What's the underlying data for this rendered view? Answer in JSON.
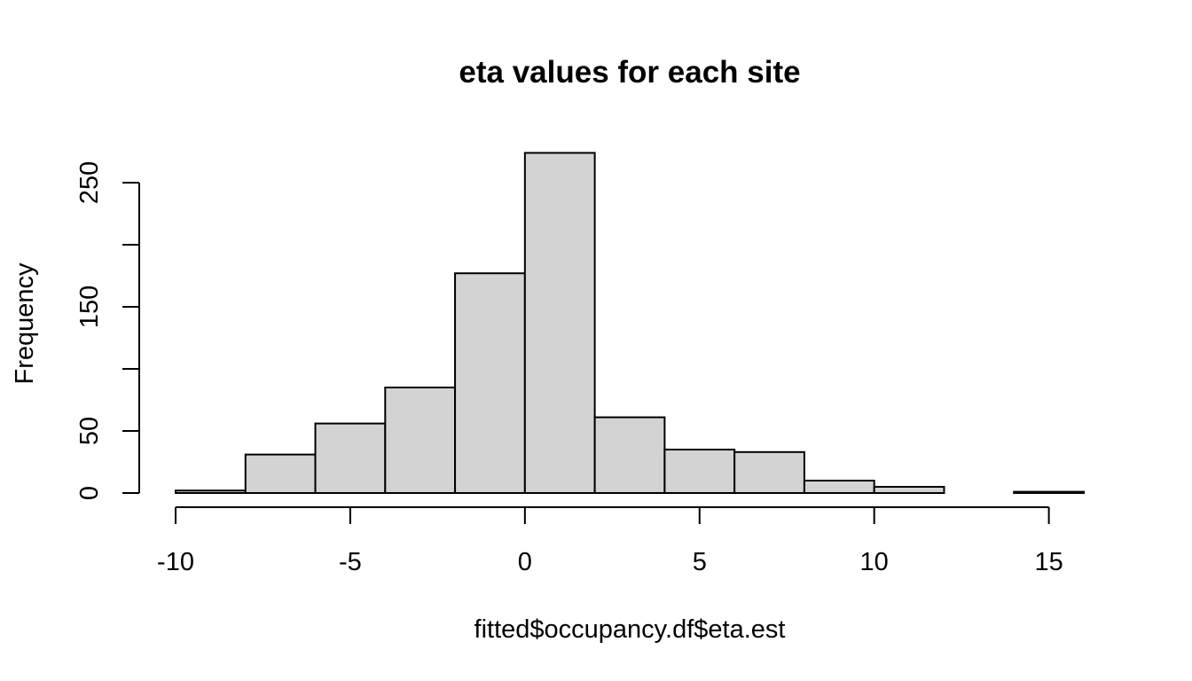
{
  "chart_data": {
    "type": "bar",
    "title": "eta values for each site",
    "xlabel": "fitted$occupancy.df$eta.est",
    "ylabel": "Frequency",
    "bins": [
      {
        "x0": -10,
        "x1": -8,
        "count": 2
      },
      {
        "x0": -8,
        "x1": -6,
        "count": 31
      },
      {
        "x0": -6,
        "x1": -4,
        "count": 56
      },
      {
        "x0": -4,
        "x1": -2,
        "count": 85
      },
      {
        "x0": -2,
        "x1": 0,
        "count": 177
      },
      {
        "x0": 0,
        "x1": 2,
        "count": 274
      },
      {
        "x0": 2,
        "x1": 4,
        "count": 61
      },
      {
        "x0": 4,
        "x1": 6,
        "count": 35
      },
      {
        "x0": 6,
        "x1": 8,
        "count": 33
      },
      {
        "x0": 8,
        "x1": 10,
        "count": 10
      },
      {
        "x0": 10,
        "x1": 12,
        "count": 5
      },
      {
        "x0": 12,
        "x1": 14,
        "count": 0
      },
      {
        "x0": 14,
        "x1": 16,
        "count": 1
      }
    ],
    "xlim": [
      -10,
      16
    ],
    "ylim": [
      0,
      275
    ],
    "x_ticks": [
      -10,
      -5,
      0,
      5,
      10,
      15
    ],
    "x_tick_labels": [
      "-10",
      "-5",
      "0",
      "5",
      "10",
      "15"
    ],
    "y_ticks": [
      0,
      50,
      100,
      150,
      200,
      250
    ],
    "y_tick_labels": [
      "0",
      "50",
      "",
      "150",
      "",
      "250"
    ],
    "bar_fill": "#d3d3d3",
    "bar_stroke": "#000000",
    "grid": false,
    "legend": "none"
  }
}
